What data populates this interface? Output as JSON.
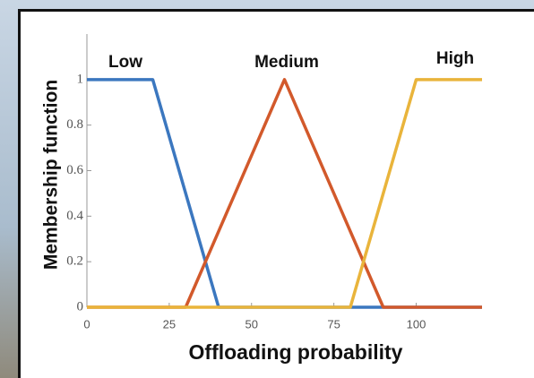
{
  "chart_data": {
    "type": "line",
    "x_label": "Offloading probability",
    "y_label": "Membership function",
    "xlim": [
      0,
      120
    ],
    "ylim": [
      0,
      1.2
    ],
    "xticks": [
      0,
      25,
      50,
      75,
      100
    ],
    "yticks": [
      0,
      0.2,
      0.4,
      0.6,
      0.8,
      1
    ],
    "grid": false,
    "series": [
      {
        "name": "Low",
        "color": "#3b77bf",
        "x": [
          0,
          20,
          40,
          120
        ],
        "values": [
          1,
          1,
          0,
          0
        ]
      },
      {
        "name": "Medium",
        "color": "#d2592b",
        "x": [
          0,
          30,
          60,
          90,
          120
        ],
        "values": [
          0,
          0,
          1,
          0,
          0
        ]
      },
      {
        "name": "High",
        "color": "#e9b43b",
        "x": [
          0,
          80,
          100,
          120
        ],
        "values": [
          0,
          0,
          1,
          1
        ]
      }
    ]
  }
}
